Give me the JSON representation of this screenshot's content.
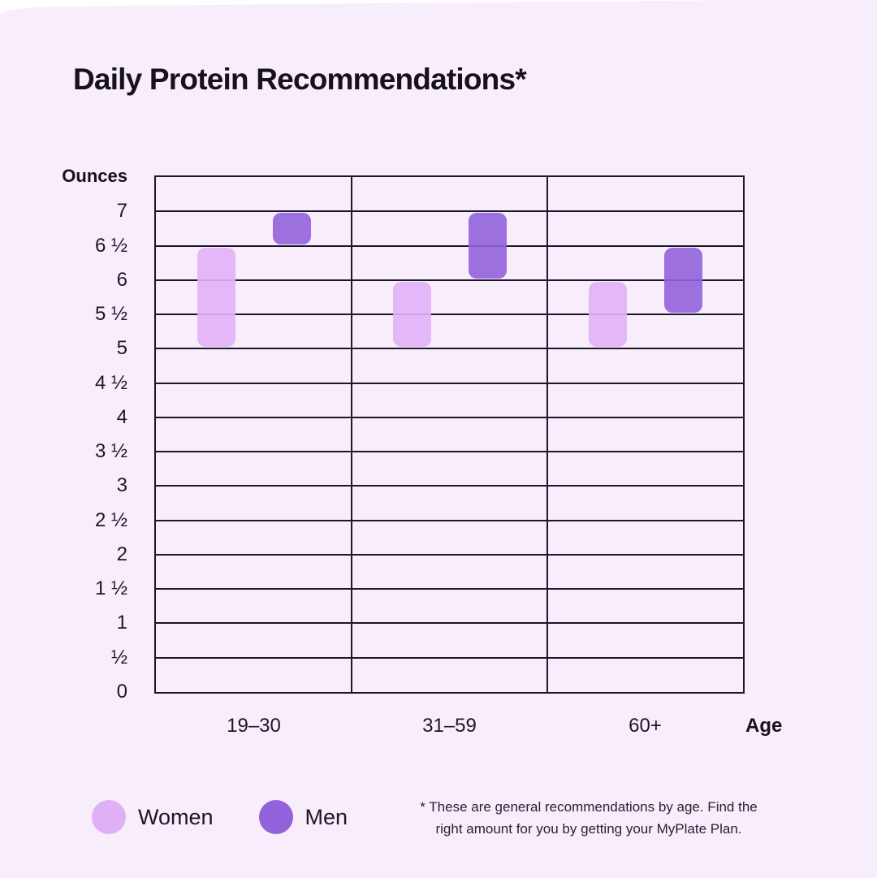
{
  "page": {
    "background_color": "#f8edfb",
    "text_color": "#1d1528"
  },
  "header": {
    "title": "Daily Protein Recommendations*"
  },
  "axes": {
    "y_title": "Ounces",
    "x_title": "Age"
  },
  "chart_data": {
    "type": "bar",
    "subtype": "floating-range-columns",
    "title": "Daily Protein Recommendations*",
    "xlabel": "Age",
    "ylabel": "Ounces",
    "ylim": [
      0,
      7.5
    ],
    "grid": true,
    "gridline_step_oz": 0.5,
    "categories": [
      "19–30",
      "31–59",
      "60+"
    ],
    "series": [
      {
        "name": "Women",
        "color": "#e0b0f7",
        "ranges_oz": [
          [
            5,
            6.5
          ],
          [
            5,
            6
          ],
          [
            5,
            6
          ]
        ]
      },
      {
        "name": "Men",
        "color": "#9162dc",
        "ranges_oz": [
          [
            6.5,
            7
          ],
          [
            6,
            7
          ],
          [
            5.5,
            6.5
          ]
        ]
      }
    ],
    "y_ticks": [
      {
        "label": "7",
        "value": 7
      },
      {
        "label": "6 ½",
        "value": 6.5
      },
      {
        "label": "6",
        "value": 6
      },
      {
        "label": "5 ½",
        "value": 5.5
      },
      {
        "label": "5",
        "value": 5
      },
      {
        "label": "4 ½",
        "value": 4.5
      },
      {
        "label": "4",
        "value": 4
      },
      {
        "label": "3 ½",
        "value": 3.5
      },
      {
        "label": "3",
        "value": 3
      },
      {
        "label": "2 ½",
        "value": 2.5
      },
      {
        "label": "2",
        "value": 2
      },
      {
        "label": "1 ½",
        "value": 1.5
      },
      {
        "label": "1",
        "value": 1
      },
      {
        "label": "½",
        "value": 0.5
      },
      {
        "label": "0",
        "value": 0
      }
    ],
    "legend_position": "bottom-left"
  },
  "legend": {
    "items": [
      {
        "label": "Women",
        "color": "#e0b0f7"
      },
      {
        "label": "Men",
        "color": "#9162dc"
      }
    ]
  },
  "footnote": {
    "line1": "* These are general recommendations by age. Find the",
    "line2": "right amount for you by getting your MyPlate Plan."
  }
}
